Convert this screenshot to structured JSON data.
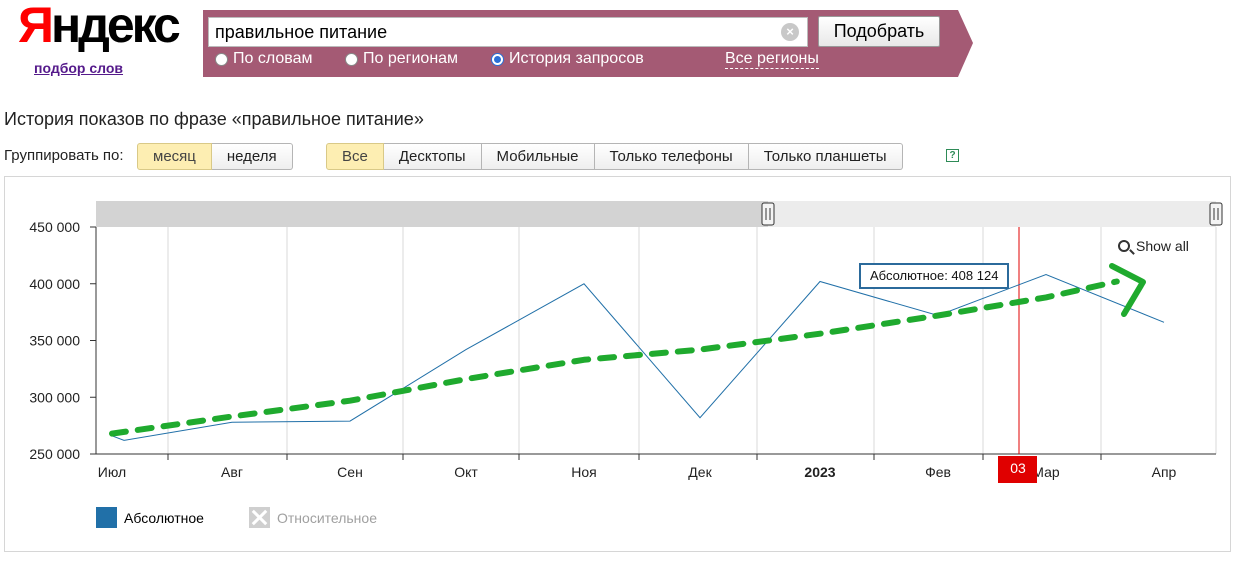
{
  "header": {
    "logo_first": "Я",
    "logo_rest": "ндекс",
    "logo_sub": "подбор слов",
    "search_value": "правильное питание",
    "search_button": "Подобрать",
    "clear_icon": "×",
    "radios": [
      {
        "label": "По словам",
        "checked": false
      },
      {
        "label": "По регионам",
        "checked": false
      },
      {
        "label": "История запросов",
        "checked": true
      }
    ],
    "regions_link": "Все регионы",
    "panel_color": "#a45a74"
  },
  "page": {
    "title": "История показов по фразе «правильное питание»",
    "group_label": "Группировать по:",
    "group_buttons": [
      {
        "label": "месяц",
        "active": true
      },
      {
        "label": "неделя",
        "active": false
      }
    ],
    "device_buttons": [
      {
        "label": "Все",
        "active": true
      },
      {
        "label": "Десктопы",
        "active": false
      },
      {
        "label": "Мобильные",
        "active": false
      },
      {
        "label": "Только телефоны",
        "active": false
      },
      {
        "label": "Только планшеты",
        "active": false
      }
    ],
    "help_icon": "?"
  },
  "chart": {
    "show_all": "Show all",
    "tooltip": "Абсолютное: 408 124",
    "cursor_label": "03",
    "legend": [
      {
        "label": "Абсолютное",
        "enabled": true,
        "color": "#2170a8"
      },
      {
        "label": "Относительное",
        "enabled": false,
        "color": "#a0a0a0"
      }
    ]
  },
  "chart_data": {
    "type": "line",
    "x": [
      "Июл",
      "Авг",
      "Сен",
      "Окт",
      "Ноя",
      "Дек",
      "2023",
      "Фев",
      "Мар",
      "Апр"
    ],
    "y_ticks": [
      "250 000",
      "300 000",
      "350 000",
      "400 000",
      "450 000"
    ],
    "ylim": [
      250000,
      450000
    ],
    "series": [
      {
        "name": "Абсолютное",
        "color": "#2170a8",
        "points": [
          [
            0,
            266000
          ],
          [
            0.1,
            262000
          ],
          [
            1,
            278000
          ],
          [
            2,
            279000
          ],
          [
            3,
            342000
          ],
          [
            4,
            400000
          ],
          [
            5,
            282000
          ],
          [
            6,
            402000
          ],
          [
            7,
            372000
          ],
          [
            8,
            408124
          ],
          [
            9,
            366000
          ]
        ]
      }
    ],
    "trend_annotation": {
      "color": "#1faa2e",
      "points": [
        [
          0,
          268000
        ],
        [
          1,
          283000
        ],
        [
          2,
          297000
        ],
        [
          3,
          316000
        ],
        [
          4,
          333000
        ],
        [
          5,
          342000
        ],
        [
          6,
          356000
        ],
        [
          7,
          372000
        ],
        [
          8,
          388000
        ],
        [
          8.6,
          402000
        ]
      ]
    },
    "cursor_x": 7.75,
    "grid": true
  }
}
